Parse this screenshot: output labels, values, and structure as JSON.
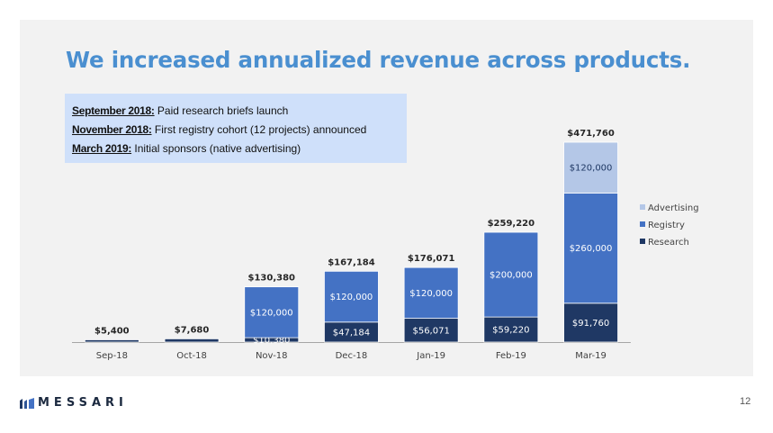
{
  "title": "We increased annualized revenue across products.",
  "milestones": [
    {
      "date": "September 2018:",
      "text": "Paid research briefs launch"
    },
    {
      "date": "November 2018:",
      "text": "First registry cohort (12 projects) announced"
    },
    {
      "date": "March 2019:",
      "text": "Initial sponsors (native advertising)"
    }
  ],
  "chart_data": {
    "type": "bar",
    "stacked": true,
    "categories": [
      "Sep-18",
      "Oct-18",
      "Nov-18",
      "Dec-18",
      "Jan-19",
      "Feb-19",
      "Mar-19"
    ],
    "series": [
      {
        "name": "Research",
        "color": "#1f3864",
        "values": [
          5400,
          7680,
          10380,
          47184,
          56071,
          59220,
          91760
        ],
        "labels": [
          "",
          "",
          "$10,380",
          "$47,184",
          "$56,071",
          "$59,220",
          "$91,760"
        ]
      },
      {
        "name": "Registry",
        "color": "#4472c4",
        "values": [
          0,
          0,
          120000,
          120000,
          120000,
          200000,
          260000
        ],
        "labels": [
          "",
          "",
          "$120,000",
          "$120,000",
          "$120,000",
          "$200,000",
          "$260,000"
        ]
      },
      {
        "name": "Advertising",
        "color": "#b4c7e7",
        "values": [
          0,
          0,
          0,
          0,
          0,
          0,
          120000
        ],
        "labels": [
          "",
          "",
          "",
          "",
          "",
          "",
          "$120,000"
        ]
      }
    ],
    "totals": [
      "$5,400",
      "$7,680",
      "$130,380",
      "$167,184",
      "$176,071",
      "$259,220",
      "$471,760"
    ],
    "legend": {
      "position": "right",
      "items": [
        "Advertising",
        "Registry",
        "Research"
      ]
    },
    "ylim": [
      0,
      471760
    ],
    "grid": false
  },
  "footer": {
    "logo_text": "MESSARI",
    "page_number": "12"
  }
}
